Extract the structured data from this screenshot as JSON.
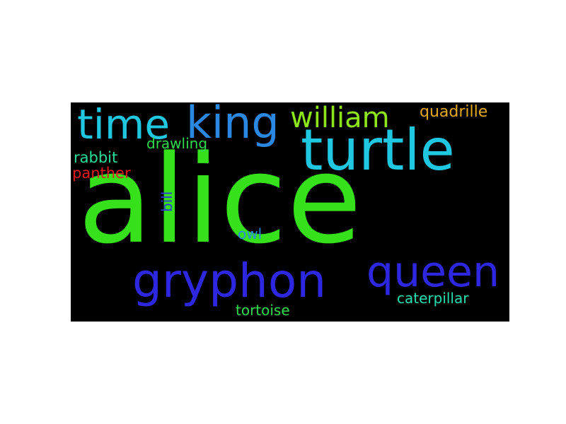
{
  "words": [
    {
      "text": "alice",
      "color": "#36e11b"
    },
    {
      "text": "turtle",
      "color": "#1fc8e0"
    },
    {
      "text": "gryphon",
      "color": "#2d27e2"
    },
    {
      "text": "queen",
      "color": "#2d27e2"
    },
    {
      "text": "king",
      "color": "#2a88e3"
    },
    {
      "text": "time",
      "color": "#1fc8e0"
    },
    {
      "text": "william",
      "color": "#8ee41a"
    },
    {
      "text": "quadrille",
      "color": "#e2a91c"
    },
    {
      "text": "drawling",
      "color": "#2fdc4f"
    },
    {
      "text": "rabbit",
      "color": "#24e09a"
    },
    {
      "text": "panther",
      "color": "#e2191c"
    },
    {
      "text": "bill",
      "color": "#2d35e0"
    },
    {
      "text": "owl",
      "color": "#2a88e3"
    },
    {
      "text": "caterpillar",
      "color": "#24e0b0"
    },
    {
      "text": "tortoise",
      "color": "#2fdc4f"
    }
  ]
}
